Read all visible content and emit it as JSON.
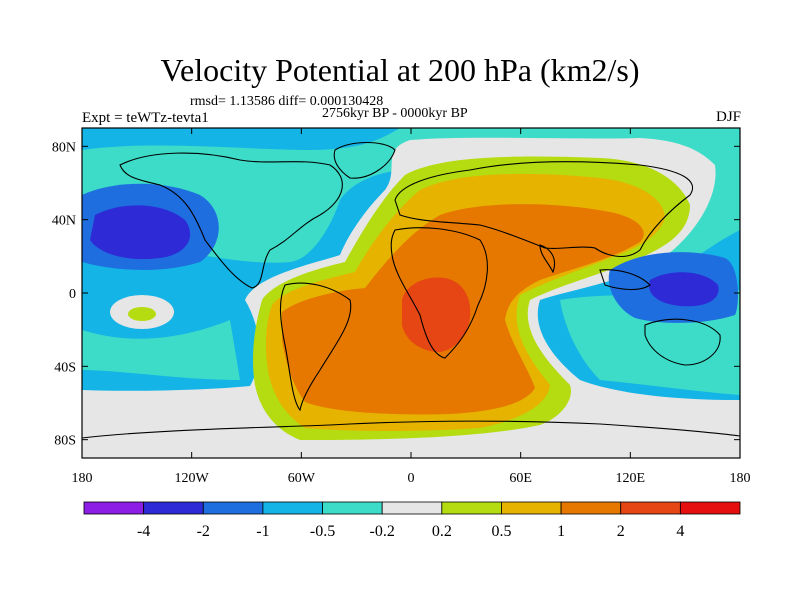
{
  "title": "Velocity Potential at 200 hPa (km2/s)",
  "stats": "rmsd= 1.13586 diff= 0.000130428",
  "period": "2756kyr BP - 0000kyr BP",
  "experiment": "Expt = teWTz-tevta1",
  "season": "DJF",
  "map": {
    "lat_ticks": [
      "80N",
      "40N",
      "0",
      "40S",
      "80S"
    ],
    "lon_ticks": [
      "180",
      "120W",
      "60W",
      "0",
      "60E",
      "120E",
      "180"
    ]
  },
  "legend": {
    "levels": [
      "-4",
      "-2",
      "-1",
      "-0.5",
      "-0.2",
      "0.2",
      "0.5",
      "1",
      "2",
      "4"
    ],
    "colors": [
      "#8c1ee6",
      "#2d2ad6",
      "#1e6ee0",
      "#15b4e6",
      "#3ddcc8",
      "#e6e6e6",
      "#b4dc10",
      "#e6b400",
      "#e67800",
      "#e64614",
      "#e60f0f"
    ]
  },
  "chart_data": {
    "type": "heatmap",
    "title": "Velocity Potential at 200 hPa (km2/s)",
    "xlabel": "",
    "ylabel": "",
    "xlim": [
      -180,
      180
    ],
    "ylim": [
      -90,
      90
    ],
    "units": "km2/s",
    "levels": [
      -4,
      -2,
      -1,
      -0.5,
      -0.2,
      0.2,
      0.5,
      1,
      2,
      4
    ],
    "features": [
      {
        "label": "max",
        "lon": 15,
        "lat": -10,
        "value": 2.5
      },
      {
        "label": "min",
        "lon": -140,
        "lat": 35,
        "value": -2.2
      },
      {
        "label": "min",
        "lon": 145,
        "lat": 5,
        "value": -2.3
      },
      {
        "label": "max",
        "lon": -155,
        "lat": -10,
        "value": 0.3
      }
    ]
  }
}
